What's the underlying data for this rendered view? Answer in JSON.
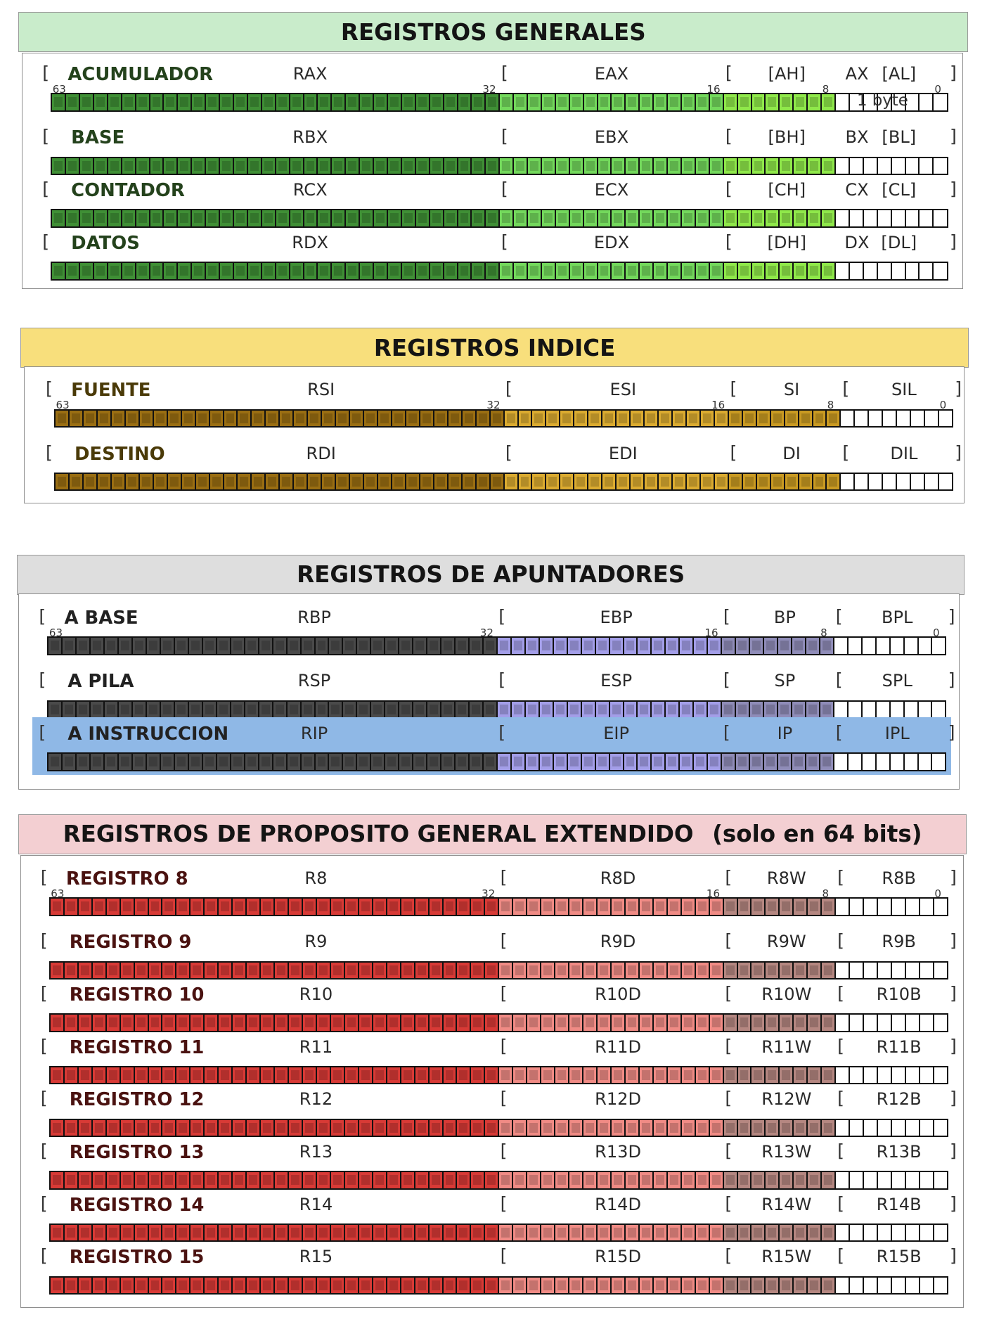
{
  "sections": [
    {
      "key": "gen",
      "title": "REGISTROS GENERALES",
      "header_color": "#c9eccb",
      "colors": [
        "#3f8f35",
        "#73d85c",
        "#8fe84a",
        "#ffffff"
      ],
      "registers": [
        {
          "label": "ACUMULADOR",
          "names": [
            "RAX",
            "EAX",
            "[AH]",
            "AX",
            "[AL]"
          ],
          "note": "1 byte"
        },
        {
          "label": "BASE",
          "names": [
            "RBX",
            "EBX",
            "[BH]",
            "BX",
            "[BL]"
          ]
        },
        {
          "label": "CONTADOR",
          "names": [
            "RCX",
            "ECX",
            "[CH]",
            "CX",
            "[CL]"
          ]
        },
        {
          "label": "DATOS",
          "names": [
            "RDX",
            "EDX",
            "[DH]",
            "DX",
            "[DL]"
          ]
        }
      ]
    },
    {
      "key": "idx",
      "title": "REGISTROS INDICE",
      "header_color": "#f8df7c",
      "colors": [
        "#9a6e12",
        "#dbab30",
        "#c99a22",
        "#ffffff"
      ],
      "registers": [
        {
          "label": "FUENTE",
          "names": [
            "RSI",
            "ESI",
            "SI",
            "SIL"
          ]
        },
        {
          "label": "DESTINO",
          "names": [
            "RDI",
            "EDI",
            "DI",
            "DIL"
          ]
        }
      ]
    },
    {
      "key": "ptr",
      "title": "REGISTROS DE APUNTADORES",
      "header_color": "#dedede",
      "colors": [
        "#4a4a4a",
        "#a39ee8",
        "#8f8cb8",
        "#ffffff"
      ],
      "registers": [
        {
          "label": "A BASE",
          "names": [
            "RBP",
            "EBP",
            "BP",
            "BPL"
          ]
        },
        {
          "label": "A PILA",
          "names": [
            "RSP",
            "ESP",
            "SP",
            "SPL"
          ]
        },
        {
          "label": "A INSTRUCCION",
          "names": [
            "RIP",
            "EIP",
            "IP",
            "IPL"
          ],
          "highlight": true
        }
      ]
    },
    {
      "key": "ext",
      "title": "REGISTROS DE PROPOSITO GENERAL EXTENDIDO",
      "title_suffix": "(solo en 64 bits)",
      "header_color": "#f3cfd2",
      "colors": [
        "#d83a36",
        "#f08b85",
        "#b58781",
        "#ffffff"
      ],
      "registers": [
        {
          "label": "REGISTRO 8",
          "names": [
            "R8",
            "R8D",
            "R8W",
            "R8B"
          ]
        },
        {
          "label": "REGISTRO 9",
          "names": [
            "R9",
            "R9D",
            "R9W",
            "R9B"
          ]
        },
        {
          "label": "REGISTRO 10",
          "names": [
            "R10",
            "R10D",
            "R10W",
            "R10B"
          ]
        },
        {
          "label": "REGISTRO 11",
          "names": [
            "R11",
            "R11D",
            "R11W",
            "R11B"
          ]
        },
        {
          "label": "REGISTRO 12",
          "names": [
            "R12",
            "R12D",
            "R12W",
            "R12B"
          ]
        },
        {
          "label": "REGISTRO 13",
          "names": [
            "R13",
            "R13D",
            "R13W",
            "R13B"
          ]
        },
        {
          "label": "REGISTRO 14",
          "names": [
            "R14",
            "R14D",
            "R14W",
            "R14B"
          ]
        },
        {
          "label": "REGISTRO 15",
          "names": [
            "R15",
            "R15D",
            "R15W",
            "R15B"
          ]
        }
      ]
    }
  ],
  "bit_labels": [
    "63",
    "32",
    "16",
    "8",
    "0"
  ],
  "highlight_color": "#8fb8e6"
}
